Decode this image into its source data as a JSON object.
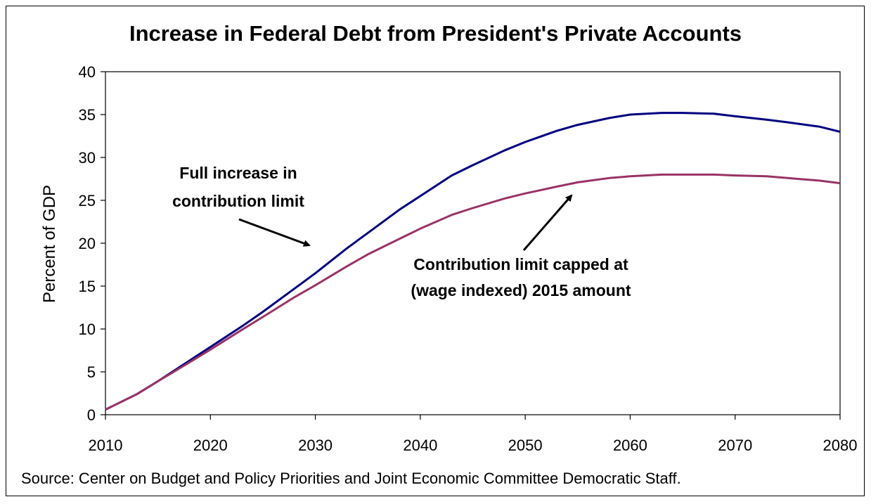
{
  "chart_data": {
    "type": "line",
    "title": "Increase in Federal Debt from President's Private Accounts",
    "xlabel": "",
    "ylabel": "Percent of GDP",
    "xlim": [
      2010,
      2080
    ],
    "ylim": [
      0,
      40
    ],
    "x_ticks": [
      "2010",
      "2020",
      "2030",
      "2040",
      "2050",
      "2060",
      "2070",
      "2080"
    ],
    "y_ticks": [
      "0",
      "5",
      "10",
      "15",
      "20",
      "25",
      "30",
      "35",
      "40"
    ],
    "grid": false,
    "legend": "none",
    "x": [
      2010,
      2013,
      2015,
      2018,
      2020,
      2023,
      2025,
      2028,
      2030,
      2033,
      2035,
      2038,
      2040,
      2043,
      2045,
      2048,
      2050,
      2053,
      2055,
      2058,
      2060,
      2063,
      2065,
      2068,
      2070,
      2073,
      2075,
      2078,
      2080
    ],
    "series": [
      {
        "color": "#00007F",
        "values": [
          0.6,
          2.4,
          3.9,
          6.3,
          7.9,
          10.3,
          12.0,
          14.7,
          16.5,
          19.4,
          21.2,
          23.9,
          25.5,
          27.9,
          29.1,
          30.8,
          31.8,
          33.1,
          33.8,
          34.6,
          35.0,
          35.2,
          35.2,
          35.1,
          34.8,
          34.4,
          34.1,
          33.6,
          33.0
        ]
      },
      {
        "color": "#993366",
        "values": [
          0.6,
          2.4,
          3.9,
          6.1,
          7.6,
          9.9,
          11.4,
          13.7,
          15.1,
          17.3,
          18.7,
          20.5,
          21.7,
          23.3,
          24.1,
          25.2,
          25.8,
          26.6,
          27.1,
          27.6,
          27.8,
          28.0,
          28.0,
          28.0,
          27.9,
          27.8,
          27.6,
          27.3,
          27.0
        ]
      }
    ],
    "annotations": [
      {
        "lines": [
          "Full increase in",
          "contribution limit"
        ]
      },
      {
        "lines": [
          "Contribution limit capped at",
          "(wage indexed) 2015 amount"
        ]
      }
    ]
  },
  "source": "Source: Center on Budget and Policy Priorities and Joint Economic Committee Democratic Staff."
}
